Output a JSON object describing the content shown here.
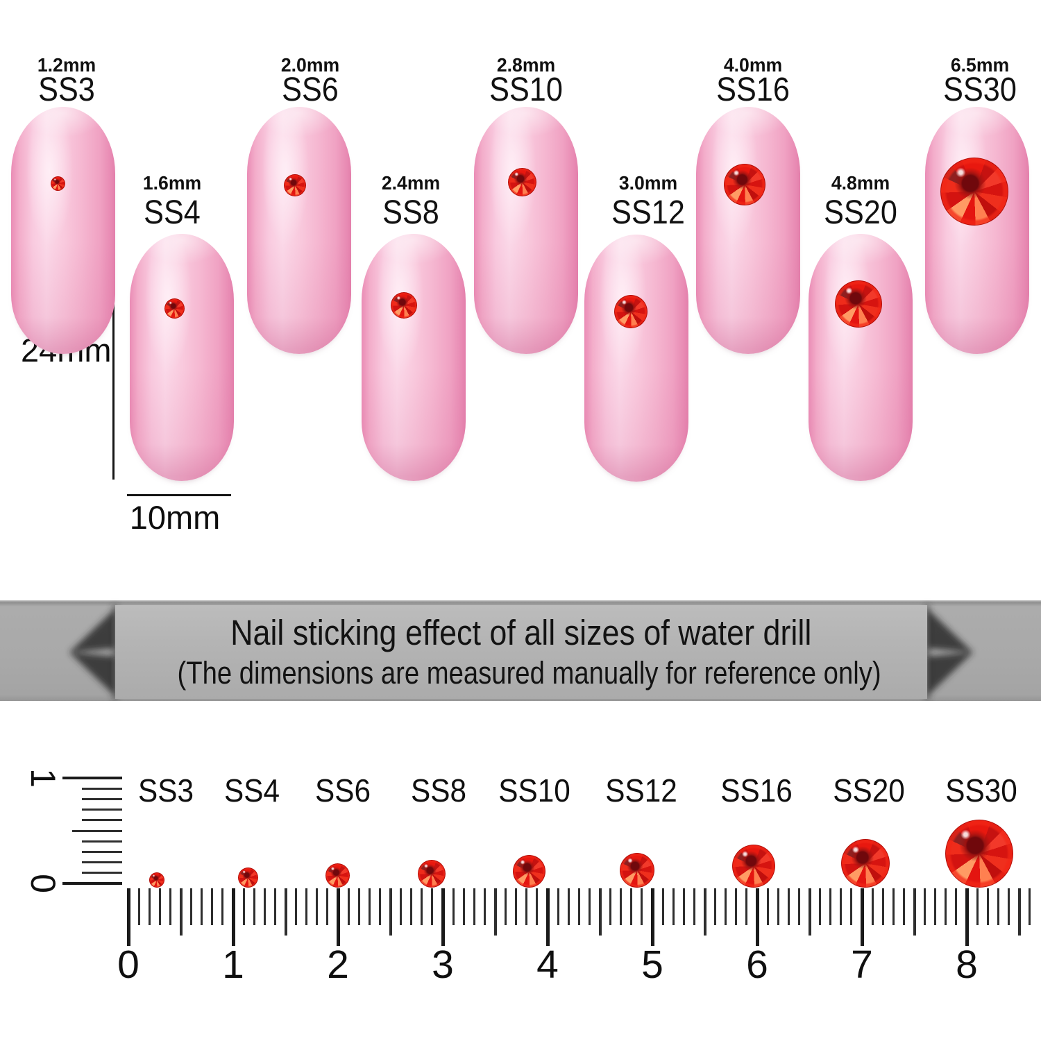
{
  "nails": [
    {
      "mm_label": "1.2mm",
      "size_label": "SS3"
    },
    {
      "mm_label": "1.6mm",
      "size_label": "SS4"
    },
    {
      "mm_label": "2.0mm",
      "size_label": "SS6"
    },
    {
      "mm_label": "2.4mm",
      "size_label": "SS8"
    },
    {
      "mm_label": "2.8mm",
      "size_label": "SS10"
    },
    {
      "mm_label": "3.0mm",
      "size_label": "SS12"
    },
    {
      "mm_label": "4.0mm",
      "size_label": "SS16"
    },
    {
      "mm_label": "4.8mm",
      "size_label": "SS20"
    },
    {
      "mm_label": "6.5mm",
      "size_label": "SS30"
    }
  ],
  "measurements": {
    "nail_length": "24mm",
    "nail_width": "10mm"
  },
  "banner": {
    "title": "Nail sticking effect of all sizes of water drill",
    "subtitle": "(The dimensions are measured manually for reference only)"
  },
  "ruler": {
    "numbers": [
      "0",
      "1",
      "2",
      "3",
      "4",
      "5",
      "6",
      "7",
      "8"
    ],
    "vertical_numbers": [
      "1",
      "0"
    ],
    "gem_labels": [
      "SS3",
      "SS4",
      "SS6",
      "SS8",
      "SS10",
      "SS12",
      "SS16",
      "SS20",
      "SS30"
    ]
  },
  "colors": {
    "gem_red": "#e3170f",
    "nail_pink": "#f8c8dd",
    "banner_band": "#a9a9a9",
    "banner_panel": "#b4b4b4",
    "text": "#151515"
  }
}
